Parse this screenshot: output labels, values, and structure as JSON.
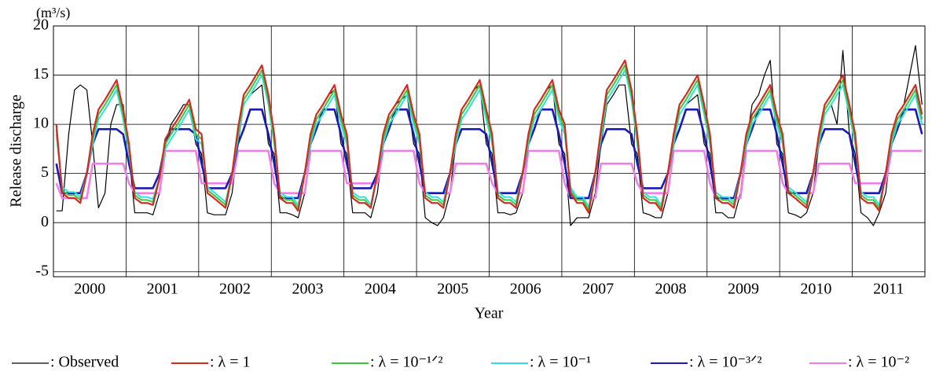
{
  "chart_data": {
    "type": "line",
    "y_label": "Release discharge",
    "unit": "(m³/s)",
    "x_label": "Year",
    "xlim": [
      2000,
      2012
    ],
    "ylim": [
      -5.5,
      20
    ],
    "yticks": [
      -5,
      0,
      5,
      10,
      15,
      20
    ],
    "xticks": [
      {
        "value": 2000.5,
        "label": "2000"
      },
      {
        "value": 2001.5,
        "label": "2001"
      },
      {
        "value": 2002.5,
        "label": "2002"
      },
      {
        "value": 2003.5,
        "label": "2003"
      },
      {
        "value": 2004.5,
        "label": "2004"
      },
      {
        "value": 2005.5,
        "label": "2005"
      },
      {
        "value": 2006.5,
        "label": "2006"
      },
      {
        "value": 2007.5,
        "label": "2007"
      },
      {
        "value": 2008.5,
        "label": "2008"
      },
      {
        "value": 2009.5,
        "label": "2009"
      },
      {
        "value": 2010.5,
        "label": "2010"
      },
      {
        "value": 2011.5,
        "label": "2011"
      }
    ],
    "x_grid_lines": [
      2001,
      2002,
      2003,
      2004,
      2005,
      2006,
      2007,
      2008,
      2009,
      2010,
      2011
    ],
    "grid": true,
    "legend": "bottom",
    "x": [
      2000.04,
      2000.12,
      2000.21,
      2000.29,
      2000.37,
      2000.46,
      2000.54,
      2000.62,
      2000.71,
      2000.79,
      2000.87,
      2000.96,
      2001.04,
      2001.12,
      2001.21,
      2001.29,
      2001.37,
      2001.46,
      2001.54,
      2001.62,
      2001.71,
      2001.79,
      2001.87,
      2001.96,
      2002.04,
      2002.12,
      2002.21,
      2002.29,
      2002.37,
      2002.46,
      2002.54,
      2002.62,
      2002.71,
      2002.79,
      2002.87,
      2002.96,
      2003.04,
      2003.12,
      2003.21,
      2003.29,
      2003.37,
      2003.46,
      2003.54,
      2003.62,
      2003.71,
      2003.79,
      2003.87,
      2003.96,
      2004.04,
      2004.12,
      2004.21,
      2004.29,
      2004.37,
      2004.46,
      2004.54,
      2004.62,
      2004.71,
      2004.79,
      2004.87,
      2004.96,
      2005.04,
      2005.12,
      2005.21,
      2005.29,
      2005.37,
      2005.46,
      2005.54,
      2005.62,
      2005.71,
      2005.79,
      2005.87,
      2005.96,
      2006.04,
      2006.12,
      2006.21,
      2006.29,
      2006.37,
      2006.46,
      2006.54,
      2006.62,
      2006.71,
      2006.79,
      2006.87,
      2006.96,
      2007.04,
      2007.12,
      2007.21,
      2007.29,
      2007.37,
      2007.46,
      2007.54,
      2007.62,
      2007.71,
      2007.79,
      2007.87,
      2007.96,
      2008.04,
      2008.12,
      2008.21,
      2008.29,
      2008.37,
      2008.46,
      2008.54,
      2008.62,
      2008.71,
      2008.79,
      2008.87,
      2008.96,
      2009.04,
      2009.12,
      2009.21,
      2009.29,
      2009.37,
      2009.46,
      2009.54,
      2009.62,
      2009.71,
      2009.79,
      2009.87,
      2009.96,
      2010.04,
      2010.12,
      2010.21,
      2010.29,
      2010.37,
      2010.46,
      2010.54,
      2010.62,
      2010.71,
      2010.79,
      2010.87,
      2010.96,
      2011.04,
      2011.12,
      2011.21,
      2011.29,
      2011.37,
      2011.46,
      2011.54,
      2011.62,
      2011.71,
      2011.79,
      2011.87,
      2011.96
    ],
    "series": [
      {
        "name": ": Observed",
        "color": "#000000",
        "width": 1.2,
        "values": [
          1.2,
          1.2,
          9,
          13.5,
          14,
          13.5,
          8,
          1.5,
          3,
          10,
          12,
          12,
          7,
          1,
          1,
          1,
          0.8,
          3,
          8,
          10,
          11,
          12,
          12,
          8,
          7,
          1,
          0.8,
          0.8,
          0.8,
          3,
          8,
          12,
          13,
          13.5,
          14,
          8,
          7,
          1,
          1,
          0.8,
          0.5,
          3,
          8,
          11,
          12,
          13,
          13.5,
          8,
          7,
          1,
          1,
          1,
          0.5,
          3,
          8,
          11,
          12,
          12.5,
          13,
          8,
          7,
          0.5,
          0,
          -0.3,
          0.5,
          3,
          8,
          11.5,
          12.5,
          13.5,
          14,
          8,
          7,
          1,
          1,
          0.8,
          1,
          3,
          8,
          11.5,
          12.5,
          13.5,
          14,
          8,
          7,
          -0.3,
          0.5,
          0.5,
          0.5,
          3,
          8,
          12,
          13,
          14,
          14,
          8,
          7,
          1,
          0.8,
          0.5,
          0.5,
          3,
          8,
          11,
          12,
          12.5,
          13,
          8,
          7,
          1,
          1,
          0.5,
          0.5,
          3,
          8,
          12,
          13,
          15,
          16.5,
          8,
          7,
          1,
          0.8,
          0.5,
          1,
          3,
          8,
          11,
          12,
          10,
          17.5,
          9,
          7,
          1,
          0.5,
          -0.3,
          1,
          3,
          8,
          11,
          12,
          15,
          18,
          12
        ]
      },
      {
        "name": ": λ = 1",
        "color": "#d42a1f",
        "width": 2.2,
        "values": [
          10,
          3,
          2.5,
          2.5,
          2,
          5,
          9,
          11.5,
          12.5,
          13.5,
          14.5,
          11.5,
          8,
          2.5,
          2,
          2,
          1.8,
          4.5,
          8.5,
          9.5,
          10.5,
          11.5,
          12.5,
          9.5,
          9,
          3,
          2.5,
          2,
          1.5,
          5,
          9.5,
          13,
          14,
          15,
          16,
          13,
          9,
          2.5,
          2,
          2,
          1.2,
          5,
          9,
          11,
          12,
          13,
          14,
          11,
          9,
          2.5,
          2,
          2,
          1.5,
          5,
          9,
          11,
          12,
          13,
          14,
          11,
          9,
          2.5,
          2,
          2,
          1.5,
          5,
          9,
          11.5,
          12.5,
          13.5,
          14.5,
          11.5,
          9,
          2.5,
          2,
          2,
          1.5,
          5,
          9,
          11.5,
          12.5,
          13.5,
          14.5,
          11.5,
          10,
          3,
          2,
          2,
          1,
          5,
          9.5,
          13.5,
          14.5,
          15.5,
          16.5,
          13.5,
          9,
          2.5,
          2,
          2,
          1.2,
          5,
          9,
          12,
          13,
          14,
          15,
          12,
          9,
          2.5,
          2,
          2,
          1.5,
          5,
          9,
          11,
          12,
          13,
          14,
          11,
          9,
          3,
          2.5,
          2,
          1.5,
          5,
          9,
          12,
          13,
          14,
          15,
          12,
          9,
          2.5,
          2,
          2,
          1.2,
          5,
          9,
          11,
          12,
          13,
          14,
          11
        ]
      },
      {
        "name": ": λ = 10⁻¹ᐟ²",
        "color": "#3cc83c",
        "width": 2,
        "values": [
          9.5,
          3.3,
          2.8,
          2.8,
          2.3,
          5,
          8.5,
          11,
          12,
          13,
          14,
          11,
          7.5,
          2.8,
          2.3,
          2.3,
          2.1,
          4.5,
          8,
          9,
          10,
          11,
          12,
          9,
          8.5,
          3.3,
          2.8,
          2.3,
          1.8,
          5,
          9,
          12.5,
          13.5,
          14.5,
          15.5,
          12.5,
          8.5,
          2.8,
          2.3,
          2.3,
          1.5,
          5,
          8.5,
          10.5,
          11.5,
          12.5,
          13.5,
          10.5,
          8.5,
          2.8,
          2.3,
          2.3,
          1.5,
          5,
          8.5,
          10.5,
          11.5,
          12.5,
          13.5,
          10.5,
          8.5,
          2.8,
          2.3,
          2.3,
          1.8,
          5,
          8.5,
          11,
          12,
          13,
          14,
          11,
          8.5,
          2.8,
          2.3,
          2.3,
          1.8,
          5,
          8.5,
          11,
          12,
          13,
          14,
          11,
          9.5,
          3.3,
          2.3,
          2.3,
          1.3,
          5,
          9,
          13,
          14,
          15,
          16,
          13,
          8.5,
          2.8,
          2.3,
          2.3,
          1.5,
          5,
          8.5,
          11.5,
          12.5,
          13.5,
          14.5,
          11.5,
          8.5,
          2.8,
          2.3,
          2.3,
          1.8,
          5,
          8.5,
          10.5,
          11.5,
          12.5,
          13.5,
          10.5,
          8.5,
          3.3,
          2.8,
          2.3,
          1.8,
          5,
          8.5,
          11.5,
          12.5,
          13.5,
          14.5,
          11.5,
          8.5,
          2.8,
          2.3,
          2.3,
          1.5,
          5,
          8.5,
          10.5,
          11.5,
          12.5,
          13.5,
          10.5
        ]
      },
      {
        "name": ": λ = 10⁻¹",
        "color": "#33e0e0",
        "width": 2,
        "values": [
          9,
          3.6,
          3.1,
          3.1,
          2.6,
          5,
          8,
          10.5,
          11.5,
          12.5,
          13.5,
          10.5,
          7,
          3.1,
          2.6,
          2.6,
          2.4,
          4.5,
          7.5,
          8.5,
          9.5,
          10.5,
          11.5,
          8.5,
          8,
          3.6,
          3.1,
          2.6,
          2.1,
          5,
          8.5,
          12,
          13,
          14,
          15,
          12,
          8,
          3.1,
          2.6,
          2.6,
          1.8,
          5,
          8,
          10,
          11,
          12,
          13,
          10,
          8,
          3.1,
          2.6,
          2.6,
          1.8,
          5,
          8,
          10,
          11,
          12,
          13,
          10,
          8,
          3.1,
          2.6,
          2.6,
          2.1,
          5,
          8,
          10.5,
          11.5,
          12.5,
          13.5,
          10.5,
          8,
          3.1,
          2.6,
          2.6,
          2.1,
          5,
          8,
          10.5,
          11.5,
          12.5,
          13.5,
          10.5,
          9,
          3.6,
          2.6,
          2.6,
          1.6,
          5,
          8.5,
          12.5,
          13.5,
          14.5,
          15.5,
          12.5,
          8,
          3.1,
          2.6,
          2.6,
          1.8,
          5,
          8,
          11,
          12,
          13,
          14,
          11,
          8,
          3.1,
          2.6,
          2.6,
          2.1,
          5,
          8,
          10,
          11,
          12,
          13,
          10,
          8,
          3.6,
          3.1,
          2.6,
          2.1,
          5,
          8,
          11,
          12,
          13,
          14,
          11,
          8,
          3.1,
          2.6,
          2.6,
          1.8,
          5,
          8,
          10,
          11,
          12,
          13,
          10
        ]
      },
      {
        "name": ": λ = 10⁻³ᐟ²",
        "color": "#1a1ab4",
        "width": 2.6,
        "values": [
          6,
          3,
          3,
          3,
          3,
          5,
          8,
          9.5,
          9.5,
          9.5,
          9.5,
          9,
          6,
          3.5,
          3.5,
          3.5,
          3.5,
          5,
          8,
          9.5,
          9.5,
          9.5,
          9.5,
          9,
          6,
          3.5,
          3.5,
          3.5,
          3.5,
          5,
          8,
          9.5,
          11.5,
          11.5,
          11.5,
          9,
          6,
          2.5,
          2.5,
          2.5,
          2.5,
          5,
          8,
          9.5,
          11.5,
          11.5,
          11.5,
          9,
          6,
          3.5,
          3.5,
          3.5,
          3.5,
          5,
          8,
          9.5,
          11.5,
          11.5,
          11.5,
          9,
          6,
          3,
          3,
          3,
          3,
          5,
          8,
          9.5,
          9.5,
          9.5,
          9.5,
          9,
          6,
          3,
          3,
          3,
          3,
          5,
          8,
          9.5,
          11.5,
          11.5,
          11.5,
          9,
          6,
          2.5,
          2.5,
          2.5,
          2.5,
          5,
          8,
          9.5,
          9.5,
          9.5,
          9.5,
          9,
          6,
          3.5,
          3.5,
          3.5,
          3.5,
          5,
          8,
          9.5,
          11.5,
          11.5,
          11.5,
          9,
          6,
          2.5,
          2.5,
          2.5,
          2.5,
          5,
          8,
          9.5,
          11.5,
          11.5,
          11.5,
          9,
          6,
          3,
          3,
          3,
          3,
          5,
          8,
          9.5,
          9.5,
          9.5,
          9.5,
          9,
          6,
          3,
          3,
          3,
          3,
          5,
          8,
          9.5,
          11.5,
          11.5,
          11.5,
          9
        ]
      },
      {
        "name": ": λ = 10⁻²",
        "color": "#f07ee8",
        "width": 2.6,
        "values": [
          4,
          2.5,
          2.5,
          2.5,
          2.5,
          2.5,
          6,
          6,
          6,
          6,
          6,
          6,
          4,
          3,
          3,
          3,
          3,
          3,
          7.3,
          7.3,
          7.3,
          7.3,
          7.3,
          7.3,
          4,
          4,
          4,
          4,
          4,
          4,
          7.3,
          7.3,
          7.3,
          7.3,
          7.3,
          7.3,
          4,
          3,
          3,
          3,
          3,
          3,
          7.3,
          7.3,
          7.3,
          7.3,
          7.3,
          7.3,
          4,
          4,
          4,
          4,
          4,
          4,
          7.3,
          7.3,
          7.3,
          7.3,
          7.3,
          7.3,
          4,
          3,
          3,
          3,
          3,
          3,
          6,
          6,
          6,
          6,
          6,
          6,
          4,
          3,
          3,
          3,
          3,
          3,
          7.3,
          7.3,
          7.3,
          7.3,
          7.3,
          7.3,
          4,
          2.5,
          2.5,
          2.5,
          2.5,
          2.5,
          6,
          6,
          6,
          6,
          6,
          6,
          4,
          3,
          3,
          3,
          3,
          3,
          7.3,
          7.3,
          7.3,
          7.3,
          7.3,
          7.3,
          4,
          2.5,
          2.5,
          2.5,
          2.5,
          2.5,
          7.3,
          7.3,
          7.3,
          7.3,
          7.3,
          7.3,
          4,
          3,
          3,
          3,
          3,
          3,
          6,
          6,
          6,
          6,
          6,
          6,
          4,
          4,
          4,
          4,
          4,
          4,
          7.3,
          7.3,
          7.3,
          7.3,
          7.3,
          7.3
        ]
      }
    ]
  }
}
